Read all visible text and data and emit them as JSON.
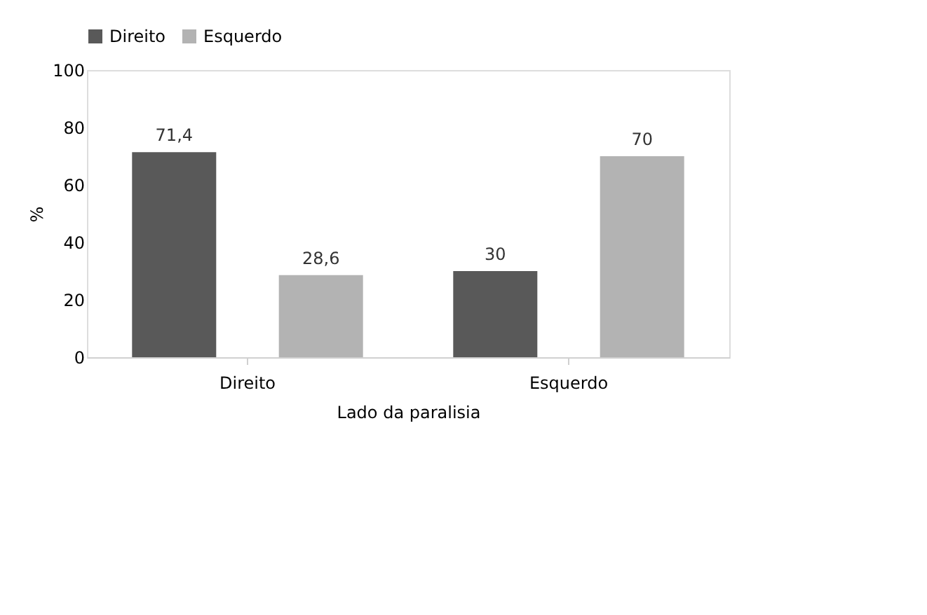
{
  "chart_data": {
    "type": "bar",
    "xlabel": "Lado da paralisia",
    "ylabel": "%",
    "categories": [
      "Direito",
      "Esquerdo"
    ],
    "series": [
      {
        "name": "Direito",
        "color": "#595959",
        "values": [
          71.4,
          30
        ],
        "value_labels": [
          "71,4",
          "30"
        ]
      },
      {
        "name": "Esquerdo",
        "color": "#b3b3b3",
        "values": [
          28.6,
          70
        ],
        "value_labels": [
          "28,6",
          "70"
        ]
      }
    ],
    "ylim": [
      0,
      100
    ],
    "yticks": [
      0,
      20,
      40,
      60,
      80,
      100
    ],
    "grid": false,
    "legend": "top"
  }
}
